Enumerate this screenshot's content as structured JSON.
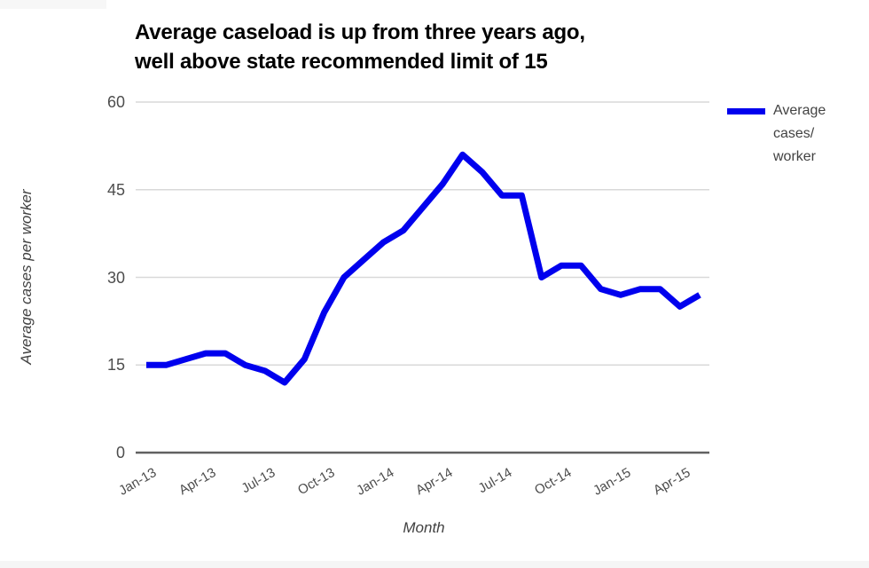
{
  "page": {
    "background_color": "#ffffff",
    "bottom_bar_color": "#f5f5f5"
  },
  "chart": {
    "title_line1": "Average caseload is up from three years ago,",
    "title_line2": "well above state recommended limit of 15",
    "y_axis_title": "Average cases per worker",
    "x_axis_title": "Month",
    "legend": {
      "label": "Average cases/worker",
      "lines": [
        "Average",
        "cases/",
        "worker"
      ],
      "swatch_color": "#0000ee"
    }
  },
  "chart_data": {
    "type": "line",
    "title": "Average caseload is up from three years ago, well above state recommended limit of 15",
    "xlabel": "Month",
    "ylabel": "Average cases per worker",
    "x": [
      "Jan-13",
      "Feb-13",
      "Mar-13",
      "Apr-13",
      "May-13",
      "Jun-13",
      "Jul-13",
      "Aug-13",
      "Sep-13",
      "Oct-13",
      "Nov-13",
      "Dec-13",
      "Jan-14",
      "Feb-14",
      "Mar-14",
      "Apr-14",
      "May-14",
      "Jun-14",
      "Jul-14",
      "Aug-14",
      "Sep-14",
      "Oct-14",
      "Nov-14",
      "Dec-14",
      "Jan-15",
      "Feb-15",
      "Mar-15",
      "Apr-15",
      "May-15"
    ],
    "series": [
      {
        "name": "Average cases/worker",
        "color": "#0000ee",
        "values": [
          15,
          15,
          16,
          17,
          17,
          15,
          14,
          12,
          16,
          24,
          30,
          33,
          36,
          38,
          42,
          46,
          51,
          48,
          44,
          44,
          30,
          32,
          32,
          28,
          27,
          28,
          28,
          25,
          27
        ]
      }
    ],
    "x_tick_labels": [
      "Jan-13",
      "Apr-13",
      "Jul-13",
      "Oct-13",
      "Jan-14",
      "Apr-14",
      "Jul-14",
      "Oct-14",
      "Jan-15",
      "Apr-15"
    ],
    "x_tick_every": 3,
    "yticks": [
      0,
      15,
      30,
      45,
      60
    ],
    "ylim": [
      0,
      60
    ],
    "grid": true,
    "legend_position": "right",
    "gridline_color": "#d9d9d9",
    "axis_line_color": "#616161",
    "tick_label_color": "#4d4d4d",
    "line_width": 7
  }
}
